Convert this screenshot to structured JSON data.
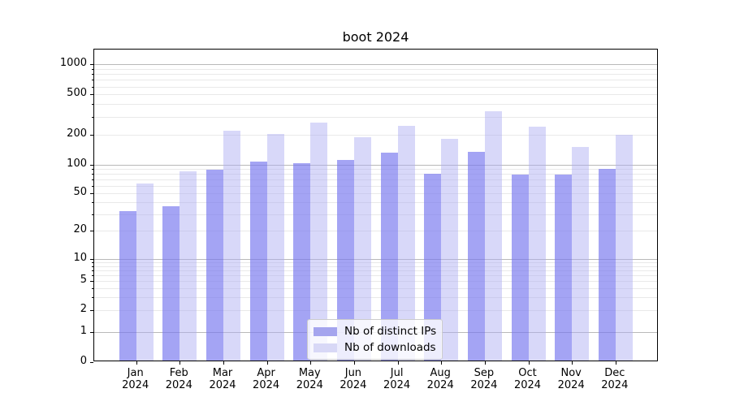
{
  "chart_data": {
    "type": "bar",
    "title": "boot 2024",
    "categories": [
      "Jan",
      "Feb",
      "Mar",
      "Apr",
      "May",
      "Jun",
      "Jul",
      "Aug",
      "Sep",
      "Oct",
      "Nov",
      "Dec"
    ],
    "category_year": "2024",
    "series": [
      {
        "name": "Nb of distinct IPs",
        "bar_color": "rgba(120,120,238,0.67)",
        "legend_color": "#a5a5ee",
        "values": [
          31,
          35,
          85,
          103,
          101,
          107,
          128,
          78,
          130,
          76,
          76,
          87
        ]
      },
      {
        "name": "Nb of downloads",
        "bar_color": "rgba(173,173,242,0.48)",
        "legend_color": "#d8d8f6",
        "values": [
          61,
          82,
          210,
          197,
          255,
          182,
          233,
          175,
          328,
          230,
          144,
          191
        ]
      }
    ],
    "yscale": "log-with-zero",
    "yticks": [
      0,
      1,
      2,
      5,
      10,
      20,
      50,
      100,
      200,
      500,
      1000
    ],
    "ylim": [
      0,
      1400
    ],
    "grid": true,
    "legend_position": "lower-center"
  }
}
